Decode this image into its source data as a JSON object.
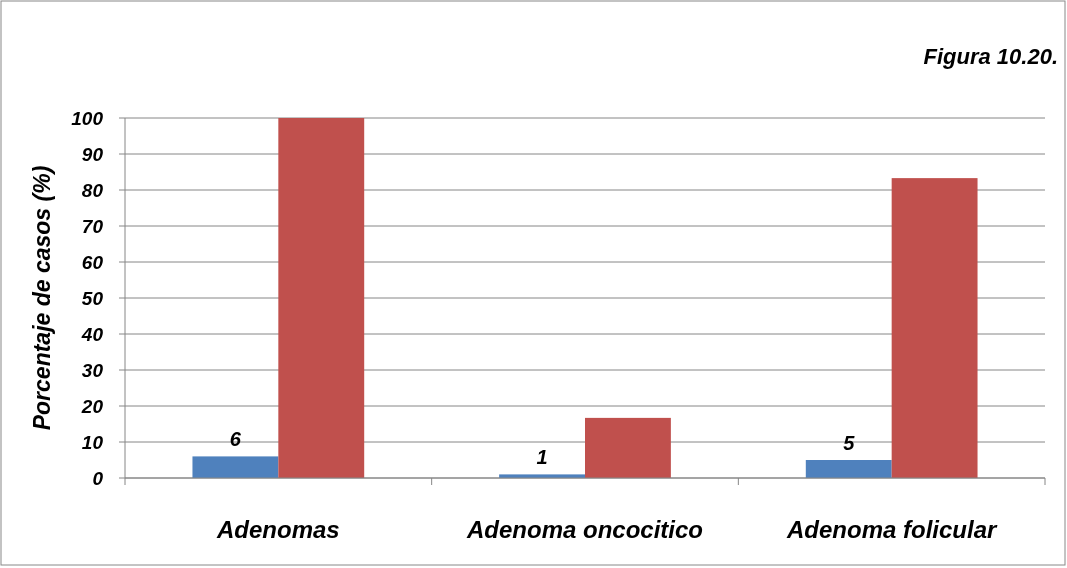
{
  "chart_data": {
    "type": "bar",
    "title": "Figura 10.20.",
    "ylabel": "Porcentaje de casos (%)",
    "categories": [
      "Adenomas",
      "Adenoma oncocitico",
      "Adenoma folicular"
    ],
    "series": [
      {
        "color": "#4f81bd",
        "values": [
          6,
          1,
          5
        ],
        "value_labels": [
          "6",
          "1",
          "5"
        ]
      },
      {
        "color": "#c0504d",
        "values": [
          100,
          16.7,
          83.3
        ]
      }
    ],
    "ylim": [
      0,
      100
    ],
    "yticks": [
      0,
      10,
      20,
      30,
      40,
      50,
      60,
      70,
      80,
      90,
      100
    ],
    "grid": "y"
  }
}
